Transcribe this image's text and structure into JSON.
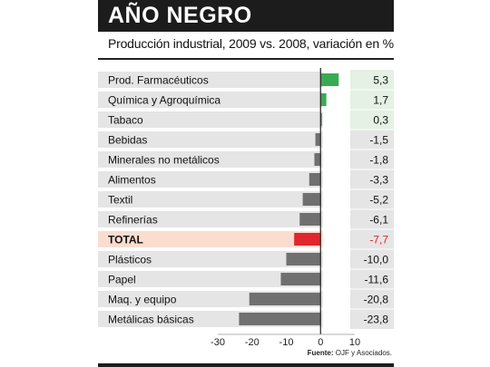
{
  "header": {
    "title": "AÑO NEGRO",
    "subtitle": "Producción industrial, 2009 vs. 2008, variación en %"
  },
  "footer": {
    "source_label": "Fuente:",
    "source_text": "OJF y Asociados."
  },
  "colors": {
    "positive": "#3aaa52",
    "negative": "#707070",
    "total": "#e0262e",
    "label_band": "#e5e5e5",
    "total_band": "#fbddd0",
    "positive_value_bg": "#e4f1e4",
    "value_bg": "#e5e5e5"
  },
  "chart_data": {
    "type": "bar",
    "orientation": "horizontal",
    "categories": [
      "Prod. Farmacéuticos",
      "Química y Agroquímica",
      "Tabaco",
      "Bebidas",
      "Minerales no metálicos",
      "Alimentos",
      "Textil",
      "Refinerías",
      "TOTAL",
      "Plásticos",
      "Papel",
      "Maq. y equipo",
      "Metálicas básicas"
    ],
    "values": [
      5.3,
      1.7,
      0.3,
      -1.5,
      -1.8,
      -3.3,
      -5.2,
      -6.1,
      -7.7,
      -10.0,
      -11.6,
      -20.8,
      -23.8
    ],
    "value_labels": [
      "5,3",
      "1,7",
      "0,3",
      "-1,5",
      "-1,8",
      "-3,3",
      "-5,2",
      "-6,1",
      "-7,7",
      "-10,0",
      "-11,6",
      "-20,8",
      "-23,8"
    ],
    "highlight_category": "TOTAL",
    "xlim": [
      -30,
      10
    ],
    "xticks": [
      -30,
      -20,
      -10,
      0,
      10
    ],
    "xtick_labels": [
      "-30",
      "-20",
      "-10",
      "0",
      "10"
    ],
    "grid": false,
    "legend": "none"
  }
}
